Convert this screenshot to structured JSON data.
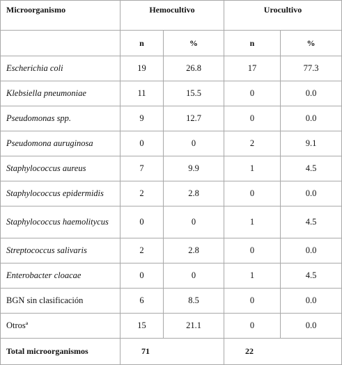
{
  "table": {
    "header": [
      "Microorganismo",
      "Hemocultivo",
      "Urocultivo"
    ],
    "subheader": [
      "n",
      "%",
      "n",
      "%"
    ],
    "rows": [
      [
        "Escherichia coli",
        "19",
        "26.8",
        "17",
        "77.3"
      ],
      [
        "Klebsiella pneumoniae",
        "11",
        "15.5",
        "0",
        "0.0"
      ],
      [
        "Pseudomonas spp.",
        "9",
        "12.7",
        "0",
        "0.0"
      ],
      [
        "Pseudomona auruginosa",
        "0",
        "0",
        "2",
        "9.1"
      ],
      [
        "Staphylococcus aureus",
        "7",
        "9.9",
        "1",
        "4.5"
      ],
      [
        "Staphylococcus epidermidis",
        "2",
        "2.8",
        "0",
        "0.0"
      ],
      [
        "Staphylococcus haemolitycus",
        "0",
        "0",
        "1",
        "4.5"
      ],
      [
        "Streptococcus salivaris",
        "2",
        "2.8",
        "0",
        "0.0"
      ],
      [
        "Enterobacter cloacae",
        "0",
        "0",
        "1",
        "4.5"
      ],
      [
        "BGN sin clasificación",
        "6",
        "8.5",
        "0",
        "0.0"
      ],
      [
        "Otrosª",
        "15",
        "21.1",
        "0",
        "0.0"
      ]
    ],
    "total": [
      "Total microorganismos",
      "71",
      "22"
    ]
  }
}
